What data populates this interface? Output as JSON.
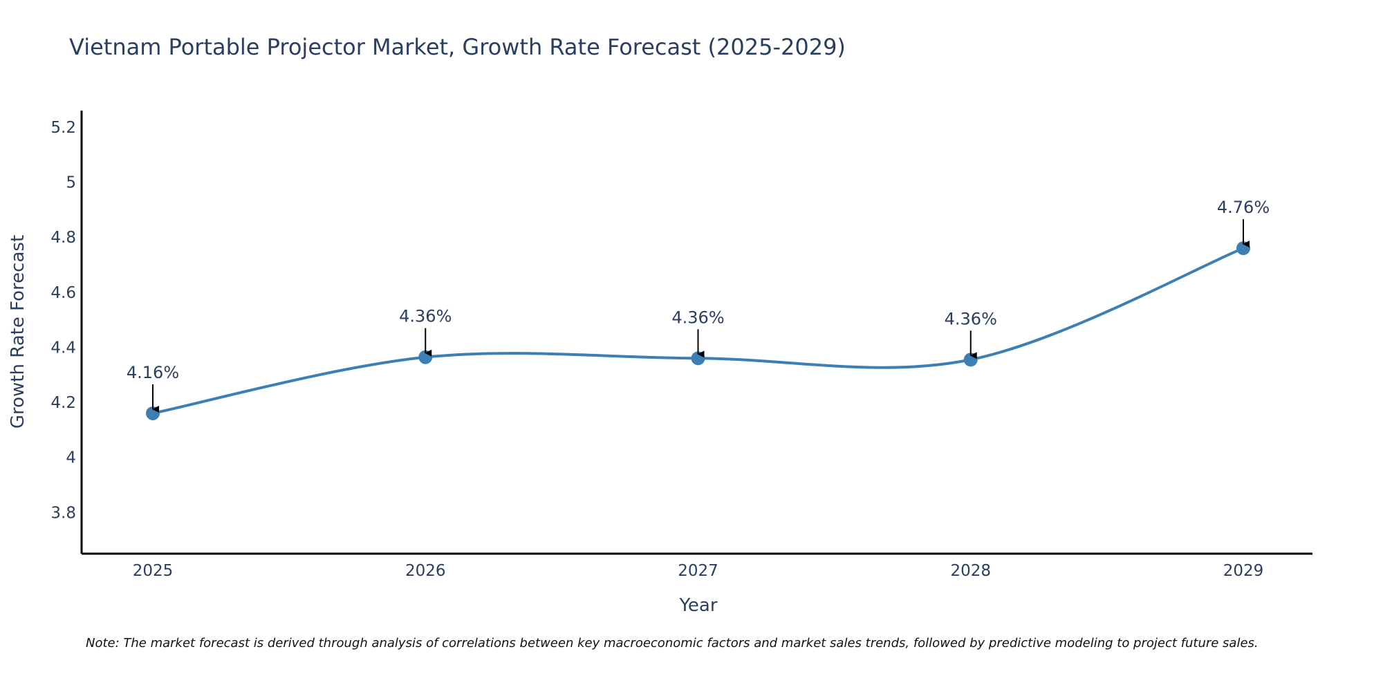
{
  "chart_data": {
    "type": "line",
    "title": "Vietnam Portable Projector Market, Growth Rate Forecast (2025-2029)",
    "xlabel": "Year",
    "ylabel": "Growth Rate Forecast",
    "x": [
      "2025",
      "2026",
      "2027",
      "2028",
      "2029"
    ],
    "series": [
      {
        "name": "Growth Rate Forecast",
        "values": [
          4.16,
          4.364,
          4.36,
          4.355,
          4.76
        ],
        "labels": [
          "4.16%",
          "4.36%",
          "4.36%",
          "4.36%",
          "4.76%"
        ]
      }
    ],
    "ylim": [
      3.65,
      5.26
    ],
    "yticks": [
      3.8,
      4,
      4.2,
      4.4,
      4.6,
      4.8,
      5,
      5.2
    ],
    "ytick_labels": [
      "3.8",
      "4",
      "4.2",
      "4.4",
      "4.6",
      "4.8",
      "5",
      "5.2"
    ],
    "grid": false,
    "legend": "none",
    "colors": {
      "line": "#3d7fb3",
      "marker": "#3d7fb3",
      "text": "#2a3f5f",
      "axis": "#000000",
      "arrow": "#000000"
    }
  },
  "note": "Note: The market forecast is derived through analysis of correlations between key macroeconomic factors and market sales trends, followed by predictive modeling to project future sales."
}
